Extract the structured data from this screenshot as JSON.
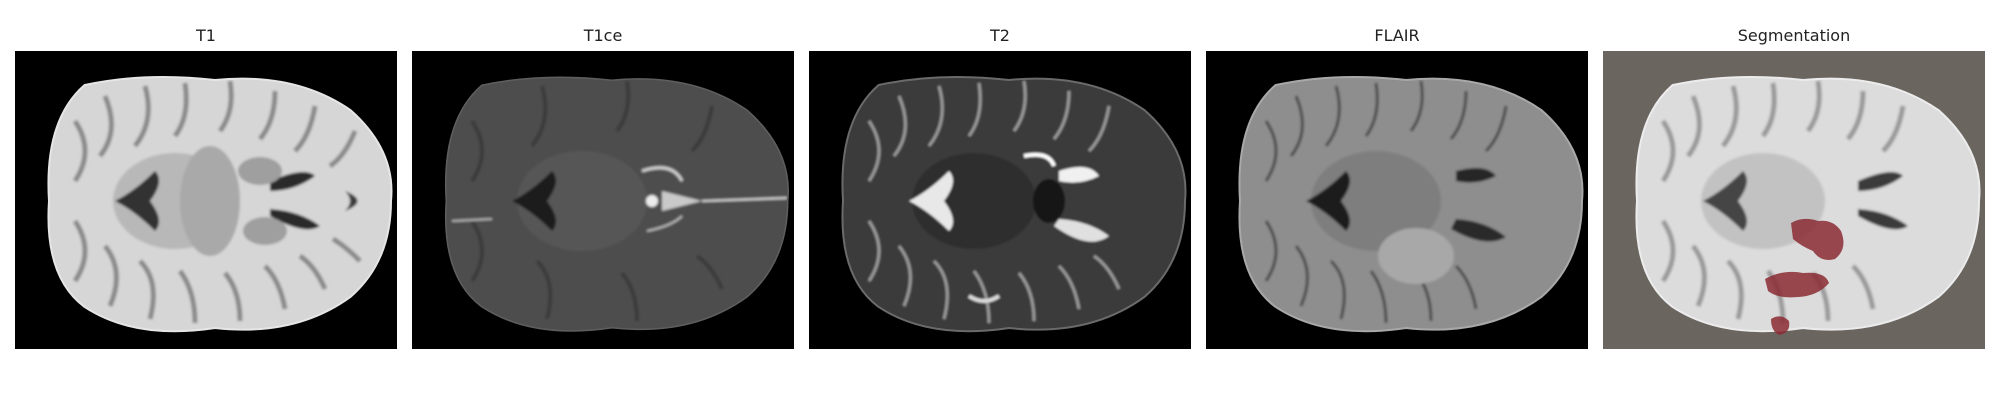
{
  "panels": [
    {
      "title": "T1",
      "kind": "t1",
      "bg": "#000000"
    },
    {
      "title": "T1ce",
      "kind": "t1ce",
      "bg": "#000000"
    },
    {
      "title": "T2",
      "kind": "t2",
      "bg": "#000000"
    },
    {
      "title": "FLAIR",
      "kind": "flair",
      "bg": "#000000"
    },
    {
      "title": "Segmentation",
      "kind": "seg",
      "bg": "#6b6560"
    }
  ],
  "colors": {
    "tumor_overlay": "#8b2c34"
  }
}
